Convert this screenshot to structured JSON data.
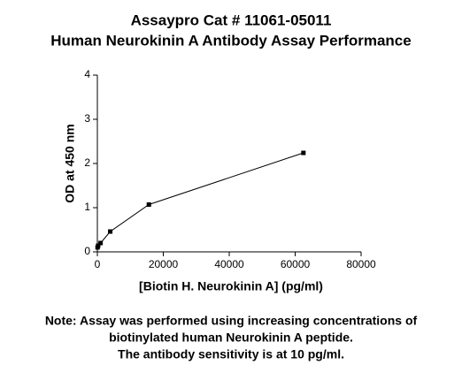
{
  "chart_data": {
    "type": "line",
    "title": [
      "Assaypro Cat # 11061-05011",
      "Human Neurokinin A Antibody Assay Performance"
    ],
    "x_label": "[Biotin H. Neurokinin A] (pg/ml)",
    "y_label": "OD at 450 nm",
    "note": [
      "Note: Assay was performed using increasing concentrations of",
      "biotinylated human Neurokinin A peptide.",
      "The antibody sensitivity is at 10 pg/ml."
    ],
    "x": [
      61,
      244,
      977,
      3906,
      15625,
      62500
    ],
    "values": [
      0.1,
      0.14,
      0.2,
      0.46,
      1.07,
      2.24
    ],
    "color": "#000000",
    "xlim": [
      0,
      80000
    ],
    "xticks": [
      0,
      20000,
      40000,
      60000,
      80000
    ],
    "ylim": [
      0,
      4
    ],
    "yticks": [
      0,
      1,
      2,
      3,
      4
    ]
  }
}
